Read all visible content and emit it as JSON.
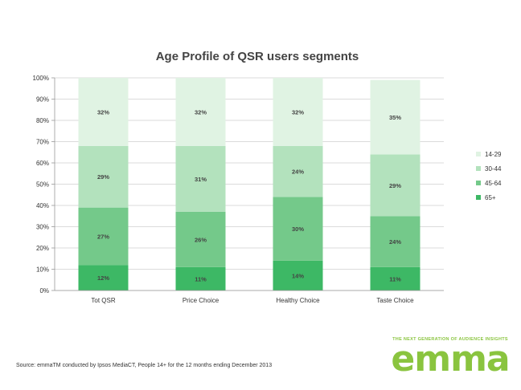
{
  "chart_data": {
    "type": "bar",
    "stacked": true,
    "title": "Age Profile of QSR users segments",
    "categories": [
      "Tot QSR",
      "Price Choice",
      "Healthy Choice",
      "Taste Choice"
    ],
    "series": [
      {
        "name": "65+",
        "values": [
          12,
          11,
          14,
          11
        ],
        "labels": [
          "12%",
          "11%",
          "14%",
          "11%"
        ],
        "color": "#3db865"
      },
      {
        "name": "45-64",
        "values": [
          27,
          26,
          30,
          24
        ],
        "labels": [
          "27%",
          "26%",
          "30%",
          "24%"
        ],
        "color": "#74c98a"
      },
      {
        "name": "30-44",
        "values": [
          29,
          31,
          24,
          29
        ],
        "labels": [
          "29%",
          "31%",
          "24%",
          "29%"
        ],
        "color": "#b3e2bd"
      },
      {
        "name": "14-29",
        "values": [
          32,
          32,
          32,
          35
        ],
        "labels": [
          "32%",
          "32%",
          "32%",
          "35%"
        ],
        "color": "#e0f3e3"
      }
    ],
    "ylim": [
      0,
      100
    ],
    "yticks": [
      "0%",
      "10%",
      "20%",
      "30%",
      "40%",
      "50%",
      "60%",
      "70%",
      "80%",
      "90%",
      "100%"
    ],
    "grid": true,
    "legend": "right",
    "legend_order": [
      "14-29",
      "30-44",
      "45-64",
      "65+"
    ]
  },
  "source": "Source: emmaTM conducted by Ipsos MediaCT, People 14+ for the 12 months ending December 2013",
  "logo": {
    "tagline": "THE NEXT GENERATION OF AUDIENCE INSIGHTS",
    "wordmark": "emma",
    "color": "#8ac43f"
  }
}
